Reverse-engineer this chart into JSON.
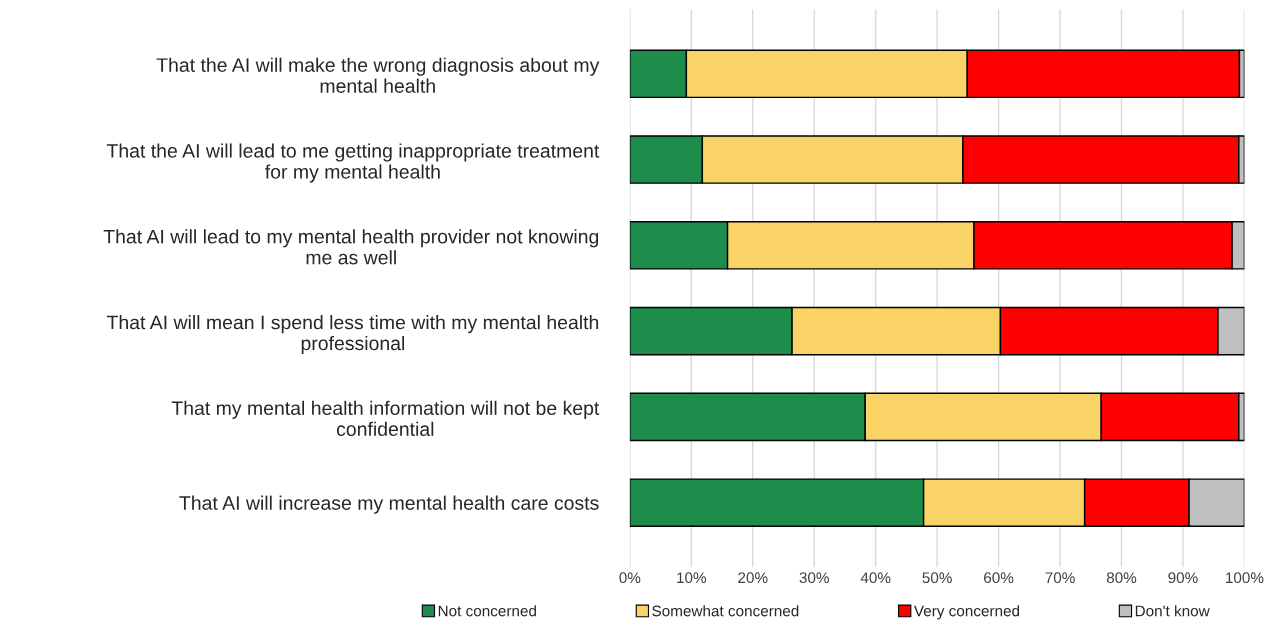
{
  "chart_data": {
    "type": "bar",
    "orientation": "horizontal",
    "stacked": true,
    "categories": [
      "That the AI will make the wrong diagnosis about my\nmental health",
      "That the AI will lead to me getting inappropriate treatment\nfor my mental health",
      "That AI will lead to my mental health provider not knowing\nme as well",
      "That AI will mean I spend less time with my mental health\nprofessional",
      "That my mental health information will not be kept\nconfidential",
      "That AI will increase my mental health care costs"
    ],
    "series": [
      {
        "name": "Not concerned",
        "color": "#1e8c4a",
        "values": [
          9.2,
          11.8,
          15.9,
          26.4,
          38.3,
          47.8
        ]
      },
      {
        "name": "Somewhat concerned",
        "color": "#f9d366",
        "values": [
          45.7,
          42.4,
          40.1,
          33.9,
          38.4,
          26.2
        ]
      },
      {
        "name": "Very concerned",
        "color": "#ff0000",
        "values": [
          44.3,
          44.9,
          42.0,
          35.4,
          22.4,
          17.0
        ]
      },
      {
        "name": "Don't know",
        "color": "#bfbfbf",
        "values": [
          0.8,
          0.9,
          2.0,
          4.3,
          0.9,
          9.0
        ]
      }
    ],
    "xlim": [
      0,
      100
    ],
    "xticks": [
      {
        "value": 0,
        "label": "0%"
      },
      {
        "value": 10,
        "label": "10%"
      },
      {
        "value": 20,
        "label": "20%"
      },
      {
        "value": 30,
        "label": "30%"
      },
      {
        "value": 40,
        "label": "40%"
      },
      {
        "value": 50,
        "label": "50%"
      },
      {
        "value": 60,
        "label": "60%"
      },
      {
        "value": 70,
        "label": "70%"
      },
      {
        "value": 80,
        "label": "80%"
      },
      {
        "value": 90,
        "label": "90%"
      },
      {
        "value": 100,
        "label": "100%"
      }
    ],
    "grid": "x",
    "legend": "bottom"
  }
}
